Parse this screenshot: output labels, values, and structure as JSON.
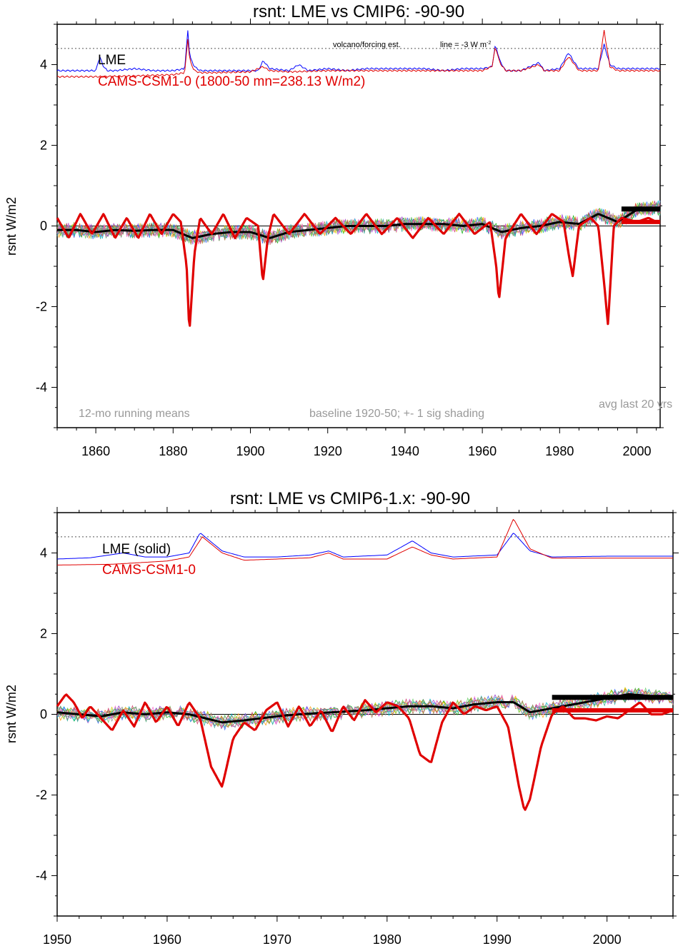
{
  "chart_data": [
    {
      "type": "line",
      "title": "rsnt: LME vs CMIP6: -90-90",
      "xlabel": "",
      "ylabel": "rsnt W/m2",
      "xlim": [
        1850,
        2006
      ],
      "ylim": [
        -5,
        5
      ],
      "x_ticks": [
        1860,
        1880,
        1900,
        1920,
        1940,
        1960,
        1980,
        2000
      ],
      "y_ticks": [
        -4,
        -2,
        0,
        2,
        4
      ],
      "grid": false,
      "annotations": {
        "volcano_label": "volcano/forcing est.",
        "line_label": "line = -3 W m",
        "line_label_sup": "-2",
        "running_mean": "12-mo running means",
        "baseline": "baseline 1920-50; +- 1 sig shading",
        "avg_last": "avg last 20 yrs"
      },
      "legend": {
        "placement": "top-left",
        "entries": [
          {
            "label": "LME",
            "color": "#000000"
          },
          {
            "label": "CAMS-CSM1-0 (1800-50 mn=238.13 W/m2)",
            "color": "#e00000"
          }
        ]
      },
      "reference_lines": {
        "zero": 0,
        "volcano_dotted": 4.4
      },
      "series": [
        {
          "name": "LME",
          "color": "#000000",
          "x": [
            1850,
            1855,
            1860,
            1865,
            1870,
            1875,
            1880,
            1885,
            1890,
            1895,
            1900,
            1905,
            1910,
            1915,
            1920,
            1925,
            1930,
            1935,
            1940,
            1945,
            1950,
            1955,
            1960,
            1965,
            1970,
            1975,
            1980,
            1985,
            1990,
            1995,
            2000,
            2005
          ],
          "y": [
            -0.1,
            -0.1,
            -0.15,
            -0.1,
            -0.12,
            -0.1,
            -0.1,
            -0.3,
            -0.2,
            -0.15,
            -0.15,
            -0.3,
            -0.15,
            -0.1,
            -0.05,
            0.0,
            0.0,
            0.0,
            0.05,
            0.05,
            0.05,
            0.0,
            0.05,
            -0.15,
            -0.05,
            0.0,
            0.1,
            0.05,
            0.3,
            0.1,
            0.4,
            0.45
          ]
        },
        {
          "name": "CAMS-CSM1-0",
          "color": "#e00000",
          "x": [
            1850,
            1853,
            1856,
            1859,
            1862,
            1865,
            1868,
            1871,
            1874,
            1877,
            1880,
            1882,
            1883.5,
            1884.2,
            1885.5,
            1887,
            1890,
            1893,
            1896,
            1899,
            1902,
            1903.2,
            1904.5,
            1906,
            1910,
            1914,
            1918,
            1922,
            1926,
            1930,
            1934,
            1938,
            1942,
            1946,
            1950,
            1954,
            1958,
            1962,
            1963.6,
            1964.3,
            1966,
            1970,
            1974,
            1978,
            1981,
            1982.5,
            1983.4,
            1985,
            1988,
            1990,
            1991.6,
            1992.5,
            1994,
            1996,
            2000,
            2003,
            2005
          ],
          "y": [
            0.2,
            -0.3,
            0.3,
            -0.2,
            0.3,
            -0.3,
            0.2,
            -0.3,
            0.3,
            -0.2,
            0.3,
            0.1,
            -1.0,
            -2.65,
            -0.7,
            0.2,
            -0.2,
            0.3,
            -0.3,
            0.2,
            0.0,
            -1.4,
            -0.3,
            0.3,
            -0.2,
            0.3,
            -0.2,
            0.2,
            -0.2,
            0.3,
            -0.2,
            0.2,
            -0.3,
            0.2,
            -0.2,
            0.3,
            -0.2,
            0.1,
            -1.0,
            -1.85,
            -0.3,
            0.3,
            -0.2,
            0.3,
            0.1,
            -0.8,
            -1.25,
            0.0,
            0.2,
            0.0,
            -1.5,
            -2.45,
            0.0,
            0.2,
            0.1,
            0.2,
            0.1
          ]
        }
      ],
      "forcing_series": [
        {
          "name": "LME forcing",
          "color": "#0000ff",
          "x": [
            1850,
            1855,
            1860,
            1861,
            1862,
            1863,
            1865,
            1870,
            1875,
            1880,
            1883,
            1883.8,
            1884.3,
            1885.5,
            1887,
            1890,
            1895,
            1900,
            1902,
            1903.3,
            1905,
            1910,
            1912.5,
            1915,
            1920,
            1925,
            1930,
            1935,
            1940,
            1945,
            1950,
            1955,
            1960,
            1962.5,
            1963.4,
            1964.5,
            1966,
            1970,
            1974.7,
            1976,
            1980,
            1982.3,
            1983.5,
            1985,
            1990,
            1991.5,
            1993,
            1995,
            2000,
            2005
          ],
          "y": [
            3.85,
            3.85,
            3.85,
            4.2,
            3.95,
            3.85,
            3.85,
            3.9,
            3.85,
            3.85,
            3.9,
            4.85,
            4.2,
            3.95,
            3.85,
            3.85,
            3.85,
            3.85,
            3.85,
            4.1,
            3.9,
            3.85,
            4.0,
            3.85,
            3.9,
            3.85,
            3.9,
            3.9,
            3.9,
            3.9,
            3.85,
            3.9,
            3.9,
            3.95,
            4.5,
            4.1,
            3.85,
            3.85,
            4.05,
            3.85,
            3.9,
            4.3,
            4.1,
            3.9,
            3.9,
            4.5,
            4.0,
            3.9,
            3.9,
            3.9
          ]
        },
        {
          "name": "CAMS-CSM1-0 forcing",
          "color": "#e00000",
          "x": [
            1850,
            1860,
            1870,
            1880,
            1883,
            1883.8,
            1884.3,
            1885.5,
            1887,
            1890,
            1900,
            1903.3,
            1905,
            1910,
            1920,
            1930,
            1940,
            1950,
            1960,
            1962.5,
            1963.4,
            1964.5,
            1966,
            1970,
            1974.7,
            1976,
            1980,
            1982.3,
            1983.5,
            1985,
            1990,
            1991.5,
            1993,
            1995,
            2000,
            2005
          ],
          "y": [
            3.7,
            3.7,
            3.72,
            3.75,
            3.8,
            4.65,
            4.1,
            3.85,
            3.8,
            3.8,
            3.82,
            3.95,
            3.85,
            3.82,
            3.85,
            3.85,
            3.85,
            3.85,
            3.85,
            3.95,
            4.45,
            4.05,
            3.85,
            3.85,
            4.0,
            3.85,
            3.85,
            4.2,
            4.05,
            3.85,
            3.85,
            4.85,
            3.95,
            3.85,
            3.85,
            3.85
          ]
        }
      ],
      "ensemble_note": "LME ensemble members shown as thin multicolored lines",
      "avg_last_20_yrs": {
        "LME": 0.42,
        "CAMS-CSM1-0": 0.1,
        "x_range": [
          1996,
          2006
        ]
      }
    },
    {
      "type": "line",
      "title": "rsnt: LME vs CMIP6-1.x: -90-90",
      "xlabel": "",
      "ylabel": "rsnt W/m2",
      "xlim": [
        1950,
        2006
      ],
      "ylim": [
        -5,
        5
      ],
      "x_ticks": [
        1950,
        1960,
        1970,
        1980,
        1990,
        2000
      ],
      "y_ticks": [
        -4,
        -2,
        0,
        2,
        4
      ],
      "grid": false,
      "legend": {
        "placement": "top-left",
        "entries": [
          {
            "label": "LME (solid)",
            "color": "#000000"
          },
          {
            "label": "CAMS-CSM1-0",
            "color": "#e00000"
          }
        ]
      },
      "reference_lines": {
        "zero": 0,
        "volcano_dotted": 4.4
      },
      "series": [
        {
          "name": "LME",
          "color": "#000000",
          "x": [
            1950,
            1952,
            1954,
            1956,
            1958,
            1960,
            1962,
            1963.5,
            1965,
            1967,
            1970,
            1972,
            1975,
            1978,
            1980,
            1982,
            1984,
            1986,
            1988,
            1990,
            1991.5,
            1993,
            1995,
            1997,
            2000,
            2002,
            2004,
            2006
          ],
          "y": [
            0.05,
            0.0,
            -0.05,
            0.05,
            0.0,
            0.05,
            0.0,
            -0.1,
            -0.2,
            -0.15,
            -0.05,
            0.0,
            0.05,
            0.1,
            0.15,
            0.2,
            0.2,
            0.15,
            0.25,
            0.3,
            0.3,
            0.05,
            0.15,
            0.25,
            0.4,
            0.5,
            0.45,
            0.42
          ]
        },
        {
          "name": "CAMS-CSM1-0",
          "color": "#e00000",
          "x": [
            1950,
            1950.8,
            1951.5,
            1952.3,
            1953,
            1954,
            1955,
            1956,
            1957,
            1958,
            1959,
            1960,
            1961,
            1962,
            1963,
            1964,
            1965,
            1966,
            1967,
            1968,
            1969,
            1970,
            1971,
            1972,
            1973,
            1974,
            1975,
            1976,
            1977,
            1978,
            1979,
            1980,
            1981,
            1982,
            1983,
            1984,
            1985,
            1986,
            1987,
            1988,
            1989,
            1990,
            1991,
            1992,
            1992.5,
            1993,
            1994,
            1995,
            1996,
            1997,
            1998,
            1999,
            2000,
            2001,
            2002,
            2003,
            2004,
            2005,
            2006
          ],
          "y": [
            0.2,
            0.5,
            0.3,
            -0.1,
            0.2,
            -0.1,
            -0.4,
            0.1,
            -0.3,
            0.3,
            -0.2,
            0.2,
            -0.3,
            0.3,
            -0.1,
            -1.3,
            -1.8,
            -0.6,
            -0.2,
            -0.4,
            0.1,
            0.3,
            -0.3,
            0.2,
            -0.3,
            0.1,
            -0.45,
            0.2,
            -0.15,
            0.35,
            0.05,
            0.3,
            0.2,
            -0.1,
            -1.0,
            -1.2,
            -0.2,
            0.3,
            0.0,
            0.2,
            0.1,
            0.2,
            -0.3,
            -1.8,
            -2.4,
            -2.1,
            -0.8,
            0.0,
            0.2,
            -0.1,
            -0.1,
            -0.15,
            -0.05,
            -0.1,
            0.1,
            0.3,
            0.0,
            0.0,
            0.1
          ]
        }
      ],
      "forcing_series": [
        {
          "name": "LME forcing",
          "color": "#0000ff",
          "x": [
            1950,
            1953,
            1956,
            1958,
            1960,
            1962,
            1963,
            1965,
            1967,
            1970,
            1973,
            1974.7,
            1976,
            1980,
            1982.3,
            1984,
            1986,
            1990,
            1991.5,
            1993,
            1995,
            2000,
            2006
          ],
          "y": [
            3.85,
            3.88,
            4.0,
            3.9,
            3.9,
            4.0,
            4.5,
            4.05,
            3.9,
            3.9,
            3.95,
            4.05,
            3.9,
            3.95,
            4.3,
            4.0,
            3.9,
            3.95,
            4.5,
            4.05,
            3.9,
            3.92,
            3.92
          ]
        },
        {
          "name": "CAMS-CSM1-0 forcing",
          "color": "#e00000",
          "x": [
            1950,
            1955,
            1960,
            1962,
            1963.2,
            1965,
            1967,
            1970,
            1973,
            1974.7,
            1976,
            1980,
            1982.3,
            1984,
            1986,
            1990,
            1991.5,
            1993,
            1995,
            2000,
            2006
          ],
          "y": [
            3.7,
            3.72,
            3.8,
            3.9,
            4.4,
            4.0,
            3.82,
            3.85,
            3.88,
            4.0,
            3.85,
            3.85,
            4.15,
            3.95,
            3.85,
            3.9,
            4.85,
            4.1,
            3.87,
            3.87,
            3.87
          ]
        }
      ],
      "ensemble_note": "LME ensemble members shown as thin multicolored lines",
      "avg_last_20_yrs": {
        "LME": 0.42,
        "CAMS-CSM1-0": 0.1,
        "x_range": [
          1995,
          2006
        ]
      }
    }
  ]
}
